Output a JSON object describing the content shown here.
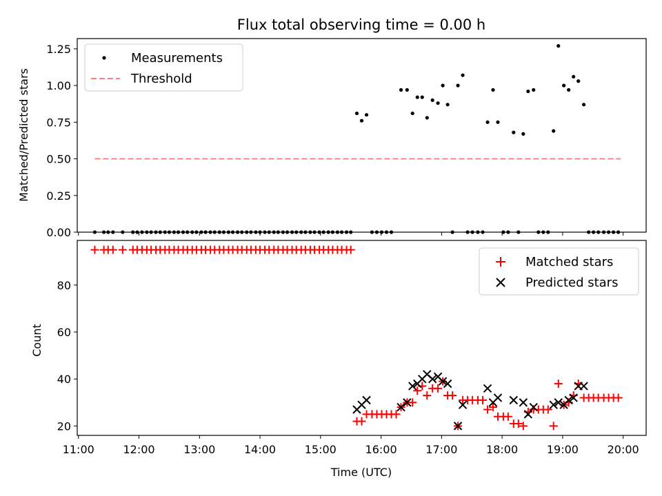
{
  "chart_data": [
    {
      "type": "scatter",
      "title": "Flux total observing time = 0.00 h",
      "xlabel": "",
      "ylabel": "Matched/Predicted stars",
      "xlim": [
        10.98,
        20.38
      ],
      "ylim": [
        0,
        1.32
      ],
      "yticks": [
        0,
        0.25,
        0.5,
        0.75,
        1.0,
        1.25
      ],
      "ytick_labels": [
        "0.00",
        "0.25",
        "0.50",
        "0.75",
        "1.00",
        "1.25"
      ],
      "legend_position": "upper-left",
      "series": [
        {
          "name": "Measurements",
          "marker": "dot",
          "color": "#000000",
          "x": [
            11.27,
            11.42,
            11.49,
            11.57,
            11.73,
            11.9,
            11.97,
            12.05,
            12.13,
            12.2,
            12.28,
            12.35,
            12.43,
            12.5,
            12.58,
            12.65,
            12.73,
            12.8,
            12.88,
            12.95,
            13.03,
            13.1,
            13.18,
            13.25,
            13.33,
            13.4,
            13.48,
            13.55,
            13.63,
            13.7,
            13.78,
            13.85,
            13.93,
            14.0,
            14.08,
            14.15,
            14.23,
            14.3,
            14.38,
            14.45,
            14.53,
            14.6,
            14.68,
            14.75,
            14.83,
            14.9,
            14.98,
            15.05,
            15.13,
            15.2,
            15.28,
            15.35,
            15.43,
            15.5,
            15.6,
            15.68,
            15.76,
            15.85,
            15.93,
            16.01,
            16.09,
            16.17,
            16.33,
            16.43,
            16.52,
            16.6,
            16.68,
            16.76,
            16.85,
            16.94,
            17.02,
            17.1,
            17.18,
            17.27,
            17.35,
            17.43,
            17.51,
            17.6,
            17.68,
            17.76,
            17.85,
            17.93,
            18.02,
            18.1,
            18.19,
            18.27,
            18.35,
            18.43,
            18.52,
            18.6,
            18.68,
            18.76,
            18.85,
            18.93,
            19.02,
            19.1,
            19.18,
            19.26,
            19.35,
            19.43,
            19.51,
            19.59,
            19.68,
            19.76,
            19.84,
            19.92
          ],
          "y": [
            0,
            0,
            0,
            0,
            0,
            0,
            0,
            0,
            0,
            0,
            0,
            0,
            0,
            0,
            0,
            0,
            0,
            0,
            0,
            0,
            0,
            0,
            0,
            0,
            0,
            0,
            0,
            0,
            0,
            0,
            0,
            0,
            0,
            0,
            0,
            0,
            0,
            0,
            0,
            0,
            0,
            0,
            0,
            0,
            0,
            0,
            0,
            0,
            0,
            0,
            0,
            0,
            0,
            0,
            0.81,
            0.76,
            0.8,
            0,
            0,
            0,
            0,
            0,
            0.97,
            0.97,
            0.81,
            0.92,
            0.92,
            0.78,
            0.9,
            0.88,
            1.0,
            0.87,
            0,
            1.0,
            1.07,
            0,
            0,
            0,
            0,
            0.75,
            0.97,
            0.75,
            0,
            0,
            0.68,
            0,
            0.67,
            0.96,
            0.97,
            0,
            0,
            0,
            0.69,
            1.27,
            1.0,
            0.97,
            1.06,
            1.03,
            0.87,
            0,
            0,
            0,
            0,
            0,
            0,
            0
          ]
        },
        {
          "name": "Threshold",
          "style": "dashed",
          "color": "#ff8080",
          "x": [
            11.27,
            19.96
          ],
          "y": [
            0.5,
            0.5
          ]
        }
      ]
    },
    {
      "type": "scatter",
      "title": "",
      "xlabel": "Time (UTC)",
      "ylabel": "Count",
      "xlim": [
        10.98,
        20.38
      ],
      "ylim": [
        16,
        99
      ],
      "xticks": [
        11,
        12,
        13,
        14,
        15,
        16,
        17,
        18,
        19,
        20
      ],
      "xtick_labels": [
        "11:00",
        "12:00",
        "13:00",
        "14:00",
        "15:00",
        "16:00",
        "17:00",
        "18:00",
        "19:00",
        "20:00"
      ],
      "yticks": [
        20,
        40,
        60,
        80
      ],
      "ytick_labels": [
        "20",
        "40",
        "60",
        "80"
      ],
      "legend_position": "upper-right",
      "series": [
        {
          "name": "Matched stars",
          "marker": "plus",
          "color": "#ff0000",
          "x": [
            11.27,
            11.42,
            11.49,
            11.57,
            11.73,
            11.9,
            11.97,
            12.05,
            12.13,
            12.2,
            12.28,
            12.35,
            12.43,
            12.5,
            12.58,
            12.65,
            12.73,
            12.8,
            12.88,
            12.95,
            13.03,
            13.1,
            13.18,
            13.25,
            13.33,
            13.4,
            13.48,
            13.55,
            13.63,
            13.7,
            13.78,
            13.85,
            13.93,
            14.0,
            14.08,
            14.15,
            14.23,
            14.3,
            14.38,
            14.45,
            14.53,
            14.6,
            14.68,
            14.75,
            14.83,
            14.9,
            14.98,
            15.05,
            15.13,
            15.2,
            15.28,
            15.35,
            15.43,
            15.5,
            15.6,
            15.68,
            15.76,
            15.85,
            15.93,
            16.01,
            16.09,
            16.17,
            16.25,
            16.33,
            16.43,
            16.52,
            16.6,
            16.68,
            16.76,
            16.85,
            16.94,
            17.02,
            17.1,
            17.18,
            17.27,
            17.35,
            17.43,
            17.51,
            17.6,
            17.68,
            17.76,
            17.85,
            17.93,
            18.02,
            18.1,
            18.19,
            18.27,
            18.35,
            18.43,
            18.52,
            18.6,
            18.68,
            18.76,
            18.85,
            18.93,
            19.02,
            19.1,
            19.18,
            19.26,
            19.35,
            19.43,
            19.51,
            19.59,
            19.68,
            19.76,
            19.84,
            19.92
          ],
          "y": [
            95,
            95,
            95,
            95,
            95,
            95,
            95,
            95,
            95,
            95,
            95,
            95,
            95,
            95,
            95,
            95,
            95,
            95,
            95,
            95,
            95,
            95,
            95,
            95,
            95,
            95,
            95,
            95,
            95,
            95,
            95,
            95,
            95,
            95,
            95,
            95,
            95,
            95,
            95,
            95,
            95,
            95,
            95,
            95,
            95,
            95,
            95,
            95,
            95,
            95,
            95,
            95,
            95,
            95,
            22,
            22,
            25,
            25,
            25,
            25,
            25,
            25,
            25,
            28,
            30,
            30,
            35,
            37,
            33,
            36,
            36,
            39,
            33,
            33,
            20,
            31,
            31,
            31,
            31,
            31,
            27,
            28,
            24,
            24,
            24,
            21,
            21,
            20,
            26,
            27,
            27,
            27,
            27,
            20,
            38,
            29,
            30,
            33,
            38,
            32,
            32,
            32,
            32,
            32,
            32,
            32,
            32
          ]
        },
        {
          "name": "Predicted stars",
          "marker": "x",
          "color": "#000000",
          "x": [
            15.6,
            15.68,
            15.76,
            16.33,
            16.43,
            16.52,
            16.6,
            16.68,
            16.76,
            16.85,
            16.94,
            17.02,
            17.1,
            17.27,
            17.35,
            17.76,
            17.85,
            17.93,
            18.19,
            18.35,
            18.43,
            18.52,
            18.85,
            18.93,
            19.02,
            19.1,
            19.18,
            19.26,
            19.35
          ],
          "y": [
            27,
            29,
            31,
            28,
            30,
            37,
            38,
            40,
            42,
            40,
            41,
            39,
            38,
            20,
            29,
            36,
            30,
            32,
            31,
            30,
            25,
            28,
            29,
            30,
            29,
            31,
            32,
            37,
            37
          ]
        }
      ]
    }
  ]
}
